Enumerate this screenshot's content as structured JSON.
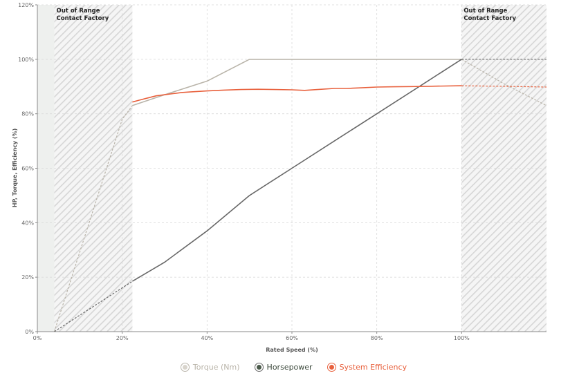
{
  "chart_data": {
    "type": "line",
    "xlabel": "Rated Speed (%)",
    "ylabel": "HP, Torque, Efficiency (%)",
    "xlim": [
      0,
      120
    ],
    "ylim": [
      0,
      120
    ],
    "x_ticks": [
      "0%",
      "20%",
      "40%",
      "60%",
      "80%",
      "100%"
    ],
    "y_ticks": [
      "0%",
      "20%",
      "40%",
      "60%",
      "80%",
      "100%",
      "120%"
    ],
    "grid": true,
    "legend_position": "bottom-center",
    "shaded_regions": [
      {
        "x_range": [
          0,
          4
        ],
        "fill": "solid",
        "color": "#eef0ee"
      },
      {
        "x_range": [
          4,
          22.4
        ],
        "fill": "hatched",
        "label_line1": "Out of Range",
        "label_line2": "Contact Factory"
      },
      {
        "x_range": [
          100,
          120
        ],
        "fill": "hatched",
        "label_line1": "Out of Range",
        "label_line2": "Contact Factory"
      }
    ],
    "series": [
      {
        "name": "Torque (Nm)",
        "color": "#b9b4a9",
        "marker_fill": "#d8d4cc",
        "segments": [
          {
            "style": "dashed",
            "points": [
              [
                4,
                0
              ],
              [
                20,
                78
              ],
              [
                22.4,
                83
              ]
            ]
          },
          {
            "style": "solid",
            "points": [
              [
                22.4,
                83
              ],
              [
                30,
                87
              ],
              [
                40,
                92
              ],
              [
                50,
                100
              ],
              [
                60,
                100
              ],
              [
                70,
                100
              ],
              [
                80,
                100
              ],
              [
                90,
                100
              ],
              [
                100,
                100
              ]
            ]
          },
          {
            "style": "dashed",
            "points": [
              [
                100,
                100
              ],
              [
                110,
                91
              ],
              [
                120,
                83
              ]
            ]
          }
        ]
      },
      {
        "name": "Horsepower",
        "color": "#686868",
        "marker_fill": "#4a5a4a",
        "segments": [
          {
            "style": "dashed",
            "points": [
              [
                4,
                0
              ],
              [
                22.4,
                18.5
              ]
            ]
          },
          {
            "style": "solid",
            "points": [
              [
                22.4,
                18.5
              ],
              [
                30,
                25.5
              ],
              [
                40,
                37
              ],
              [
                50,
                50
              ],
              [
                60,
                60
              ],
              [
                70,
                70
              ],
              [
                80,
                80
              ],
              [
                90,
                90
              ],
              [
                100,
                100
              ]
            ]
          },
          {
            "style": "dashed",
            "points": [
              [
                100,
                100
              ],
              [
                120,
                100
              ]
            ]
          }
        ]
      },
      {
        "name": "System Efficiency",
        "color": "#e8603c",
        "marker_fill": "#e8603c",
        "segments": [
          {
            "style": "solid",
            "points": [
              [
                22.4,
                84.3
              ],
              [
                24,
                85
              ],
              [
                26,
                85.8
              ],
              [
                28,
                86.6
              ],
              [
                30,
                87
              ],
              [
                32,
                87.4
              ],
              [
                34,
                87.8
              ],
              [
                36,
                88
              ],
              [
                40,
                88.4
              ],
              [
                44,
                88.7
              ],
              [
                48,
                88.9
              ],
              [
                52,
                89
              ],
              [
                56,
                88.9
              ],
              [
                60,
                88.8
              ],
              [
                63,
                88.6
              ],
              [
                66,
                88.9
              ],
              [
                70,
                89.3
              ],
              [
                73,
                89.3
              ],
              [
                76,
                89.5
              ],
              [
                80,
                89.8
              ],
              [
                84,
                89.9
              ],
              [
                88,
                90
              ],
              [
                92,
                90.1
              ],
              [
                96,
                90.2
              ],
              [
                100,
                90.3
              ]
            ]
          },
          {
            "style": "dashed",
            "points": [
              [
                100,
                90.3
              ],
              [
                110,
                90.1
              ],
              [
                120,
                89.8
              ]
            ]
          }
        ]
      }
    ]
  }
}
